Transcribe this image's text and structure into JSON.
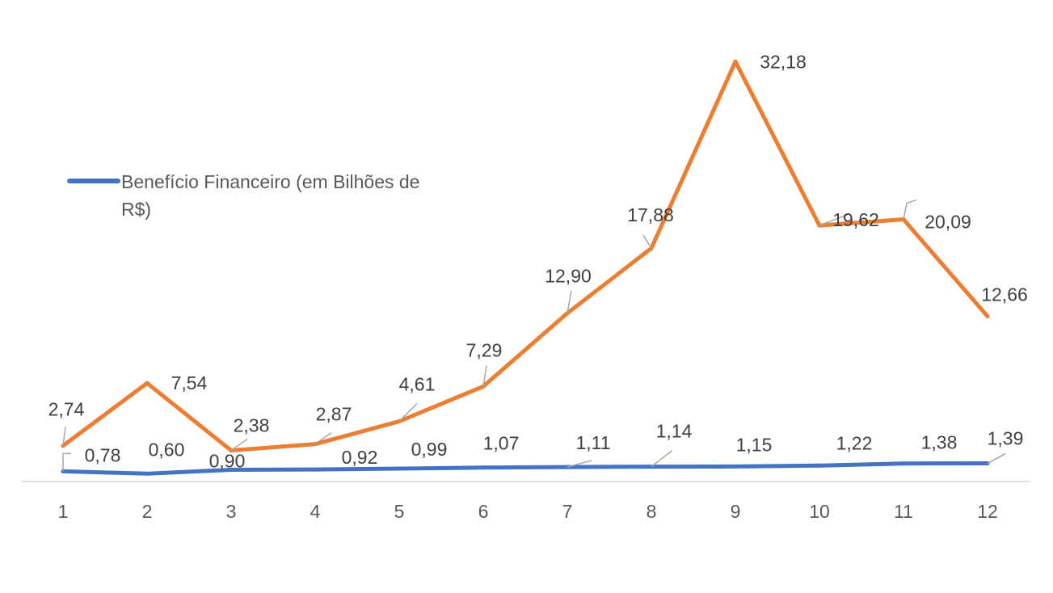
{
  "chart_data": {
    "type": "line",
    "title": "",
    "xlabel": "",
    "ylabel": "",
    "categories": [
      "1",
      "2",
      "3",
      "4",
      "5",
      "6",
      "7",
      "8",
      "9",
      "10",
      "11",
      "12"
    ],
    "ylim": [
      0,
      35
    ],
    "grid": false,
    "legend": {
      "placement": "top-left",
      "entries": [
        "Benefício Financeiro (em Bilhões de R$)"
      ]
    },
    "series": [
      {
        "name": "Benefício Financeiro (em Bilhões de R$)",
        "color": "#4472C4",
        "values": [
          0.78,
          0.6,
          0.9,
          0.92,
          0.99,
          1.07,
          1.11,
          1.14,
          1.15,
          1.22,
          1.38,
          1.39
        ],
        "labels": [
          "0,78",
          "0,60",
          "0,90",
          "0,92",
          "0,99",
          "1,07",
          "1,11",
          "1,14",
          "1,15",
          "1,22",
          "1,38",
          "1,39"
        ]
      },
      {
        "color": "#ED7D31",
        "values": [
          2.74,
          7.54,
          2.38,
          2.87,
          4.61,
          7.29,
          12.9,
          17.88,
          32.18,
          19.62,
          20.09,
          12.66
        ],
        "labels": [
          "2,74",
          "7,54",
          "2,38",
          "2,87",
          "4,61",
          "7,29",
          "12,90",
          "17,88",
          "32,18",
          "19,62",
          "20,09",
          "12,66"
        ]
      }
    ]
  },
  "legend": {
    "line1": "Benefício Financeiro (em Bilhões de",
    "line2": "R$)"
  },
  "colors": {
    "axis": "#D9D9D9",
    "leader": "#A6A6A6"
  }
}
